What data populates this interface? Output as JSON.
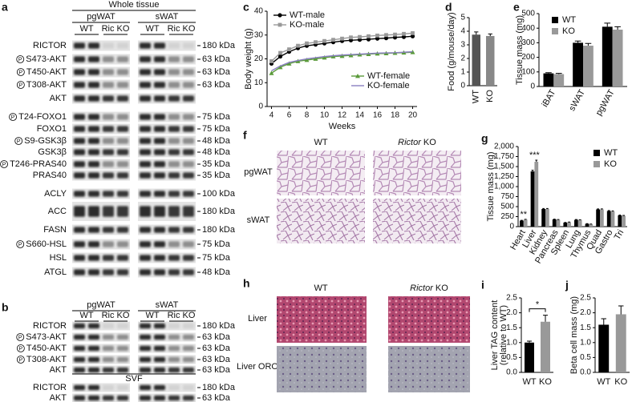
{
  "chart_data": [
    {
      "type": "line",
      "letter": "c",
      "ylabel": "Body weight (g)",
      "xlabel": "Weeks",
      "x": [
        4,
        5,
        6,
        7,
        8,
        9,
        10,
        11,
        12,
        13,
        14,
        15,
        16,
        17,
        18,
        19,
        20
      ],
      "xlim": [
        3.5,
        20.5
      ],
      "xticks": [
        4,
        6,
        8,
        10,
        12,
        14,
        16,
        18,
        20
      ],
      "ylim": [
        0,
        40
      ],
      "yticks": [
        0,
        10,
        20,
        30,
        40
      ],
      "legend": "upper left",
      "series": [
        {
          "name": "WT-male",
          "color": "#000000",
          "marker": "circle",
          "values": [
            18,
            21,
            23,
            24.5,
            25.5,
            26,
            26.5,
            27,
            27.5,
            27.8,
            28,
            28.2,
            28.5,
            28.7,
            29,
            29.2,
            29.5
          ]
        },
        {
          "name": "KO-male",
          "color": "#999999",
          "marker": "square",
          "values": [
            19,
            22.5,
            24,
            25.5,
            26.5,
            27,
            27.5,
            28,
            28.5,
            29,
            29.2,
            29.5,
            29.8,
            30,
            30.2,
            30.5,
            30.8
          ]
        },
        {
          "name": "WT-female",
          "color": "#5a9a3a",
          "marker": "triangle",
          "values": [
            14,
            16.5,
            18,
            19,
            19.5,
            20,
            20.5,
            21,
            21.2,
            21.5,
            21.8,
            22,
            22.2,
            22.3,
            22.5,
            22.6,
            22.8
          ]
        },
        {
          "name": "KO-female",
          "color": "#8a7fc0",
          "marker": "none",
          "values": [
            15,
            17,
            18.5,
            19.3,
            20,
            20.5,
            21,
            21.3,
            21.6,
            21.8,
            22,
            22.2,
            22.4,
            22.5,
            22.6,
            22.8,
            23
          ]
        }
      ]
    },
    {
      "type": "bar",
      "letter": "d",
      "ylabel": "Food (g/mouse/day)",
      "categories": [
        "WT",
        "KO"
      ],
      "values": [
        3.75,
        3.65
      ],
      "errors": [
        0.2,
        0.15
      ],
      "colors": [
        "#555555",
        "#888888"
      ],
      "ylim": [
        0,
        5
      ],
      "yticks": [
        0,
        1,
        2,
        3,
        4,
        5
      ]
    },
    {
      "type": "bar",
      "letter": "e",
      "ylabel": "Tissue mass (mg)",
      "categories": [
        "iBAT",
        "sWAT",
        "pgWAT"
      ],
      "ylim": [
        0,
        500
      ],
      "yticks": [
        0,
        100,
        200,
        300,
        400,
        500
      ],
      "legend": "upper left",
      "series": [
        {
          "name": "WT",
          "color": "#000000",
          "values": [
            90,
            300,
            410
          ],
          "errors": [
            5,
            12,
            25
          ]
        },
        {
          "name": "KO",
          "color": "#999999",
          "values": [
            85,
            280,
            390
          ],
          "errors": [
            5,
            15,
            20
          ]
        }
      ]
    },
    {
      "type": "bar",
      "letter": "g",
      "ylabel": "Tissue mass (mg)",
      "categories": [
        "Heart",
        "Liver",
        "Kidney",
        "Pancreas",
        "Spleen",
        "Lung",
        "Thymus",
        "Quad",
        "Gastro",
        "Tri"
      ],
      "ylim": [
        0,
        2000
      ],
      "yticks": [
        0,
        250,
        500,
        750,
        {
          "value": 1000,
          "label": "1,000"
        },
        {
          "value": 1250,
          "label": "1,250"
        },
        {
          "value": 1500,
          "label": "1,500"
        },
        {
          "value": 1750,
          "label": "1,750"
        },
        {
          "value": 2000,
          "label": "2,000"
        }
      ],
      "legend": "upper right",
      "series": [
        {
          "name": "WT",
          "color": "#000000",
          "values": [
            150,
            1380,
            440,
            180,
            100,
            170,
            70,
            430,
            390,
            280
          ],
          "errors": [
            8,
            30,
            12,
            8,
            6,
            8,
            6,
            12,
            12,
            10
          ]
        },
        {
          "name": "KO",
          "color": "#999999",
          "values": [
            175,
            1620,
            440,
            170,
            110,
            165,
            60,
            430,
            380,
            270
          ],
          "errors": [
            8,
            40,
            12,
            8,
            6,
            8,
            6,
            12,
            12,
            10
          ]
        }
      ],
      "annotations": [
        {
          "text": "**",
          "category": "Heart"
        },
        {
          "text": "***",
          "category": "Liver"
        }
      ]
    },
    {
      "type": "bar",
      "letter": "i",
      "ylabel": [
        "Liver TAG content",
        "(relative to WT)"
      ],
      "categories": [
        "WT",
        "KO"
      ],
      "values": [
        1.0,
        1.7
      ],
      "errors": [
        0.05,
        0.22
      ],
      "colors": [
        "#000000",
        "#999999"
      ],
      "ylim": [
        0,
        2.5
      ],
      "yticks": [
        {
          "value": 0,
          "label": "0.0"
        },
        0.5,
        {
          "value": 1,
          "label": "1.0"
        },
        1.5,
        {
          "value": 2,
          "label": "2.0"
        },
        2.5
      ],
      "annotations": [
        {
          "text": "*",
          "between": [
            "WT",
            "KO"
          ]
        }
      ]
    },
    {
      "type": "bar",
      "letter": "j",
      "ylabel": "Beta cell mass (mg)",
      "categories": [
        "WT",
        "KO"
      ],
      "values": [
        1.6,
        1.95
      ],
      "errors": [
        0.2,
        0.28
      ],
      "colors": [
        "#000000",
        "#999999"
      ],
      "ylim": [
        0,
        2.5
      ],
      "yticks": [
        {
          "value": 0,
          "label": "0.0"
        },
        0.5,
        {
          "value": 1,
          "label": "1.0"
        },
        1.5,
        {
          "value": 2,
          "label": "2.0"
        },
        2.5
      ]
    }
  ],
  "blot_a": {
    "letter": "a",
    "header": "Whole tissue",
    "phospho_symbol": "P",
    "groups": [
      "pgWAT",
      "sWAT"
    ],
    "lanes": [
      "WT",
      "Ric KO"
    ],
    "rows": [
      {
        "label": "RICTOR",
        "kda": "180 kDa"
      },
      {
        "label": "S473-AKT",
        "phospho": true,
        "kda": "63 kDa"
      },
      {
        "label": "T450-AKT",
        "phospho": true,
        "kda": "63 kDa"
      },
      {
        "label": "T308-AKT",
        "phospho": true,
        "kda": "63 kDa"
      },
      {
        "label": "AKT"
      },
      {
        "label": "T24-FOXO1",
        "phospho": true,
        "kda": "75 kDa"
      },
      {
        "label": "FOXO1",
        "kda": "75 kDa"
      },
      {
        "label": "S9-GSK3β",
        "phospho": true,
        "kda": "48 kDa"
      },
      {
        "label": "GSK3β",
        "kda": "48 kDa"
      },
      {
        "label": "T246-PRAS40",
        "phospho": true,
        "kda": "35 kDa"
      },
      {
        "label": "PRAS40",
        "kda": "35 kDa"
      },
      {
        "label": "ACLY",
        "kda": "100 kDa"
      },
      {
        "label": "ACC",
        "kda": "180 kDa"
      },
      {
        "label": "FASN",
        "kda": "180 kDa"
      },
      {
        "label": "S660-HSL",
        "phospho": true,
        "kda": "75 kDa"
      },
      {
        "label": "HSL",
        "kda": "75 kDa"
      },
      {
        "label": "ATGL",
        "kda": "48 kDa"
      }
    ]
  },
  "blot_b": {
    "letter": "b",
    "phospho_symbol": "P",
    "groups": [
      "pgWAT",
      "sWAT"
    ],
    "lanes": [
      "WT",
      "Ric KO"
    ],
    "rows": [
      {
        "label": "RICTOR",
        "kda": "180 kDa"
      },
      {
        "label": "S473-AKT",
        "phospho": true,
        "kda": "63 kDa"
      },
      {
        "label": "T450-AKT",
        "phospho": true,
        "kda": "63 kDa"
      },
      {
        "label": "T308-AKT",
        "phospho": true,
        "kda": "63 kDa"
      },
      {
        "label": "AKT",
        "kda": "63 kDa"
      }
    ],
    "divider": "SVF",
    "rows_after": [
      {
        "label": "RICTOR",
        "kda": "180 kDa"
      },
      {
        "label": "AKT",
        "kda": "63 kDa"
      }
    ]
  },
  "histology_f": {
    "letter": "f",
    "columns": [
      "WT",
      {
        "gene": "Rictor",
        "suffix": "KO"
      }
    ],
    "rows": [
      "pgWAT",
      "sWAT"
    ]
  },
  "histology_h": {
    "letter": "h",
    "columns": [
      "WT",
      {
        "gene": "Rictor",
        "suffix": "KO"
      }
    ],
    "rows": [
      "Liver",
      "Liver ORO"
    ]
  }
}
